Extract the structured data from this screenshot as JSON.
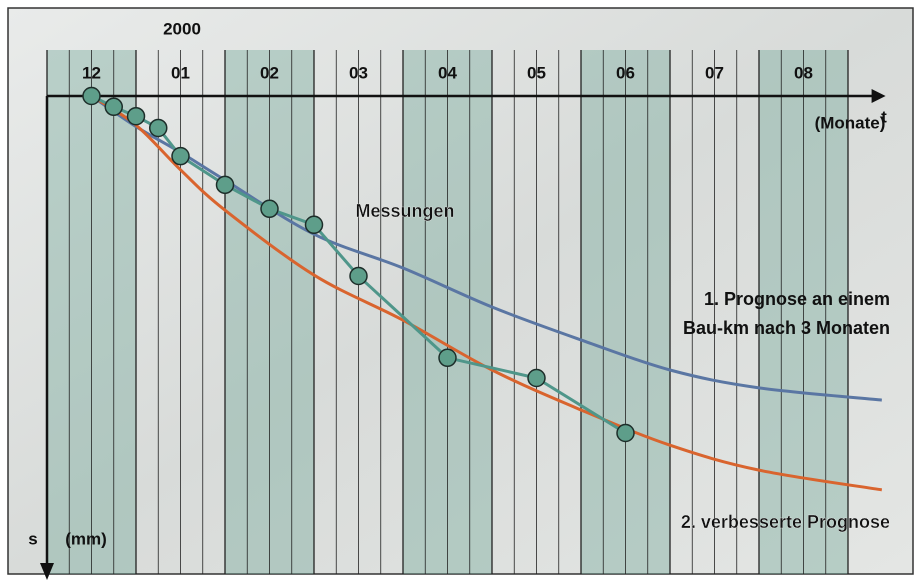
{
  "chart_data": {
    "type": "line",
    "year_label": "2000",
    "x_label": "t",
    "x_unit": "(Monate)",
    "y_label": "s",
    "y_unit": "(mm)",
    "categories": [
      "12",
      "01",
      "02",
      "03",
      "04",
      "05",
      "06",
      "07",
      "08"
    ],
    "shaded_categories": [
      0,
      2,
      4,
      6,
      8
    ],
    "xlim": [
      0,
      9.4
    ],
    "ylim": [
      0,
      100
    ],
    "series": [
      {
        "name": [
          "1. Prognose an einem",
          "Bau-km nach 3 Monaten"
        ],
        "color": "#5a76a3",
        "label_color": "#ffffff",
        "x": [
          0.5,
          1,
          1.5,
          2,
          3,
          4,
          5,
          6,
          7,
          8,
          9.38
        ],
        "values": [
          0,
          6.5,
          12,
          17.9,
          29.4,
          36.6,
          44.9,
          51.9,
          58.3,
          62.1,
          64.7
        ]
      },
      {
        "name": "2. verbesserte Prognose",
        "color": "#d9642e",
        "label_color": "#d9642e",
        "x": [
          0.5,
          1,
          1.5,
          2,
          3,
          4,
          5,
          6,
          7,
          8,
          9.38
        ],
        "values": [
          0,
          6.2,
          15.7,
          24.3,
          38.1,
          47.7,
          58.3,
          66.8,
          74.3,
          79.6,
          83.8
        ]
      },
      {
        "name": "Messungen",
        "color": "#4f968a",
        "label_color": "#4f968a",
        "markers": true,
        "x": [
          0.5,
          0.75,
          1,
          1.25,
          1.5,
          2,
          2.5,
          3,
          3.5,
          4.5,
          5.5,
          6.5
        ],
        "values": [
          0,
          2.3,
          4.3,
          6.8,
          12.8,
          18.9,
          24,
          27.4,
          38.3,
          55.7,
          60,
          71.7
        ]
      }
    ]
  }
}
